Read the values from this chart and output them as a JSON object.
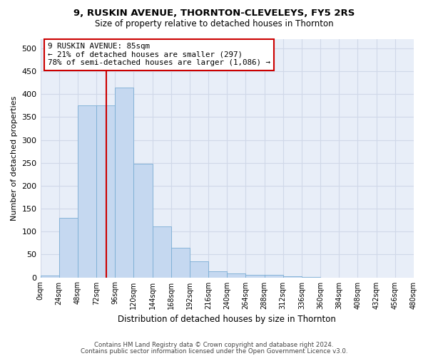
{
  "title1": "9, RUSKIN AVENUE, THORNTON-CLEVELEYS, FY5 2RS",
  "title2": "Size of property relative to detached houses in Thornton",
  "xlabel": "Distribution of detached houses by size in Thornton",
  "ylabel": "Number of detached properties",
  "bin_labels": [
    "0sqm",
    "24sqm",
    "48sqm",
    "72sqm",
    "96sqm",
    "120sqm",
    "144sqm",
    "168sqm",
    "192sqm",
    "216sqm",
    "240sqm",
    "264sqm",
    "288sqm",
    "312sqm",
    "336sqm",
    "360sqm",
    "384sqm",
    "408sqm",
    "432sqm",
    "456sqm",
    "480sqm"
  ],
  "bar_heights": [
    4,
    130,
    375,
    375,
    415,
    248,
    111,
    65,
    35,
    14,
    8,
    6,
    5,
    3,
    1,
    0,
    0,
    0,
    0,
    0,
    3
  ],
  "bar_color": "#c5d8f0",
  "bar_edge_color": "#7aadd4",
  "vline_color": "#cc0000",
  "annotation_text": "9 RUSKIN AVENUE: 85sqm\n← 21% of detached houses are smaller (297)\n78% of semi-detached houses are larger (1,086) →",
  "annotation_box_color": "#ffffff",
  "annotation_box_edge": "#cc0000",
  "ylim": [
    0,
    520
  ],
  "yticks": [
    0,
    50,
    100,
    150,
    200,
    250,
    300,
    350,
    400,
    450,
    500
  ],
  "footer1": "Contains HM Land Registry data © Crown copyright and database right 2024.",
  "footer2": "Contains public sector information licensed under the Open Government Licence v3.0.",
  "bg_color": "#ffffff",
  "plot_bg_color": "#e8eef8",
  "grid_color": "#d0d8e8"
}
